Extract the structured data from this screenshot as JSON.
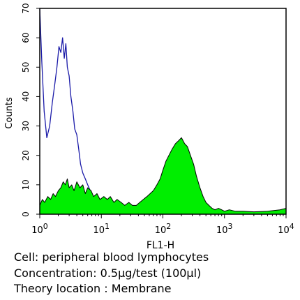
{
  "chart_data": {
    "type": "area",
    "xlabel": "FL1-H",
    "ylabel": "Counts",
    "x_scale": "log",
    "xlim": [
      1,
      10000
    ],
    "ylim": [
      0,
      70
    ],
    "grid": false,
    "x_ticks": [
      {
        "value": 1,
        "base": "10",
        "exp": "0"
      },
      {
        "value": 10,
        "base": "10",
        "exp": "1"
      },
      {
        "value": 100,
        "base": "10",
        "exp": "2"
      },
      {
        "value": 1000,
        "base": "10",
        "exp": "3"
      },
      {
        "value": 10000,
        "base": "10",
        "exp": "4"
      }
    ],
    "y_ticks": [
      {
        "value": 0,
        "label": "0"
      },
      {
        "value": 10,
        "label": "10"
      },
      {
        "value": 20,
        "label": "20"
      },
      {
        "value": 30,
        "label": "30"
      },
      {
        "value": 40,
        "label": "40"
      },
      {
        "value": 50,
        "label": "50"
      },
      {
        "value": 60,
        "label": "60"
      },
      {
        "value": 70,
        "label": "70"
      }
    ],
    "series": [
      {
        "style": "outline",
        "color": "#1a1aa8",
        "x": [
          1.0,
          1.08,
          1.18,
          1.3,
          1.45,
          1.6,
          1.75,
          1.9,
          2.05,
          2.2,
          2.35,
          2.5,
          2.65,
          2.8,
          3.0,
          3.2,
          3.45,
          3.7,
          4.0,
          4.3,
          4.6,
          5.0,
          5.5,
          6.0,
          6.6,
          7.2,
          8.0,
          9.0,
          10.0,
          11.0,
          12.5,
          14.0,
          16.0,
          18.0,
          20.0,
          23.0,
          26.0,
          30.0
        ],
        "y": [
          70,
          52,
          35,
          26,
          30,
          38,
          44,
          50,
          57,
          55,
          60,
          53,
          58,
          50,
          47,
          40,
          35,
          29,
          27,
          22,
          17,
          14,
          12,
          10,
          8,
          6,
          5,
          3.5,
          4,
          2.5,
          3,
          2,
          2.5,
          1.5,
          1.2,
          1,
          0.8,
          0.5
        ]
      },
      {
        "style": "filled",
        "color": "#00ee00",
        "x": [
          1.0,
          1.1,
          1.2,
          1.35,
          1.5,
          1.65,
          1.8,
          2.0,
          2.2,
          2.4,
          2.6,
          2.8,
          3.0,
          3.3,
          3.6,
          4.0,
          4.5,
          5.0,
          5.5,
          6.0,
          6.8,
          7.5,
          8.5,
          9.5,
          11.0,
          12.5,
          14.0,
          16.0,
          18.0,
          21.0,
          24.0,
          28.0,
          32.0,
          37.0,
          42.0,
          48.0,
          55.0,
          62.0,
          70.0,
          80.0,
          90.0,
          100.0,
          112.0,
          125.0,
          140.0,
          160.0,
          180.0,
          200.0,
          225.0,
          250.0,
          280.0,
          315.0,
          350.0,
          400.0,
          450.0,
          500.0,
          560.0,
          630.0,
          700.0,
          800.0,
          900.0,
          1000.0,
          1200.0,
          1500.0,
          2000.0,
          3000.0,
          5000.0,
          8000.0,
          10000.0
        ],
        "y": [
          3,
          5,
          4,
          6,
          5,
          7,
          6,
          8,
          9,
          11,
          10,
          12,
          9,
          10,
          8,
          11,
          9,
          10,
          7,
          9,
          8,
          6,
          7,
          5,
          6,
          5,
          6,
          4,
          5,
          4,
          3,
          4,
          3,
          3,
          4,
          5,
          6,
          7,
          8,
          10,
          12,
          15,
          18,
          20,
          22,
          24,
          25,
          26,
          24,
          23,
          20,
          17,
          13,
          9,
          6,
          4,
          3,
          2,
          1.5,
          2,
          1.5,
          1,
          1.5,
          1,
          1,
          0.8,
          1,
          1.5,
          2
        ]
      }
    ]
  },
  "caption": {
    "cell": "Cell: peripheral blood lymphocytes",
    "concentration": "Concentration: 0.5µg/test (100µl)",
    "location": "Theory location : Membrane"
  }
}
